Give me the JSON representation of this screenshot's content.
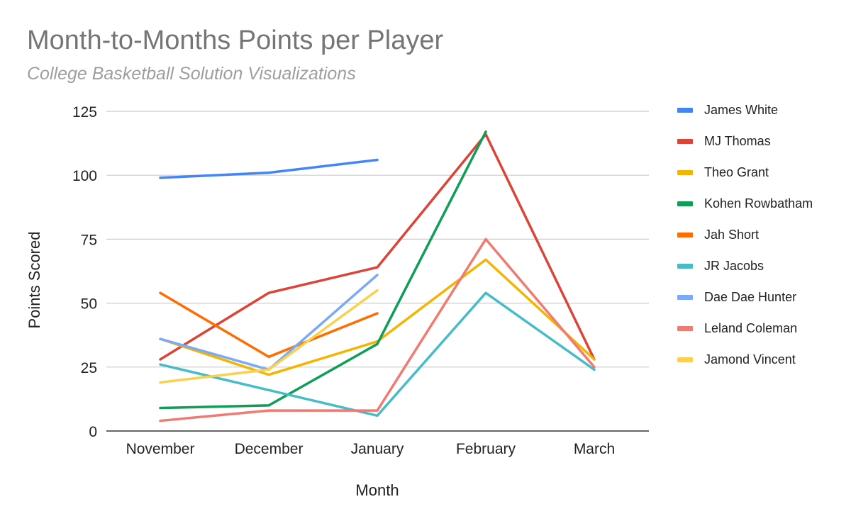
{
  "chart_data": {
    "type": "line",
    "title": "Month-to-Months Points per Player",
    "subtitle": "College Basketball Solution Visualizations",
    "xlabel": "Month",
    "ylabel": "Points Scored",
    "categories": [
      "November",
      "December",
      "January",
      "February",
      "March"
    ],
    "ylim": [
      0,
      125
    ],
    "yticks": [
      0,
      25,
      50,
      75,
      100,
      125
    ],
    "grid": true,
    "legend_position": "right",
    "series": [
      {
        "name": "James White",
        "color": "#4285f4",
        "values": [
          99,
          101,
          106,
          null,
          null
        ]
      },
      {
        "name": "MJ Thomas",
        "color": "#db4437",
        "values": [
          28,
          54,
          64,
          116,
          28
        ]
      },
      {
        "name": "Theo Grant",
        "color": "#f4b400",
        "values": [
          36,
          22,
          35,
          67,
          28
        ]
      },
      {
        "name": "Kohen Rowbatham",
        "color": "#0f9d58",
        "values": [
          9,
          10,
          34,
          117,
          null
        ]
      },
      {
        "name": "Jah Short",
        "color": "#ff6d01",
        "values": [
          54,
          29,
          46,
          null,
          null
        ]
      },
      {
        "name": "JR Jacobs",
        "color": "#46bdc6",
        "values": [
          26,
          16,
          6,
          54,
          24
        ]
      },
      {
        "name": "Dae Dae Hunter",
        "color": "#7baaf7",
        "values": [
          36,
          24,
          61,
          null,
          null
        ]
      },
      {
        "name": "Leland Coleman",
        "color": "#f07b72",
        "values": [
          4,
          8,
          8,
          75,
          25
        ]
      },
      {
        "name": "Jamond Vincent",
        "color": "#fcd04f",
        "values": [
          19,
          24,
          55,
          null,
          null
        ]
      }
    ]
  }
}
